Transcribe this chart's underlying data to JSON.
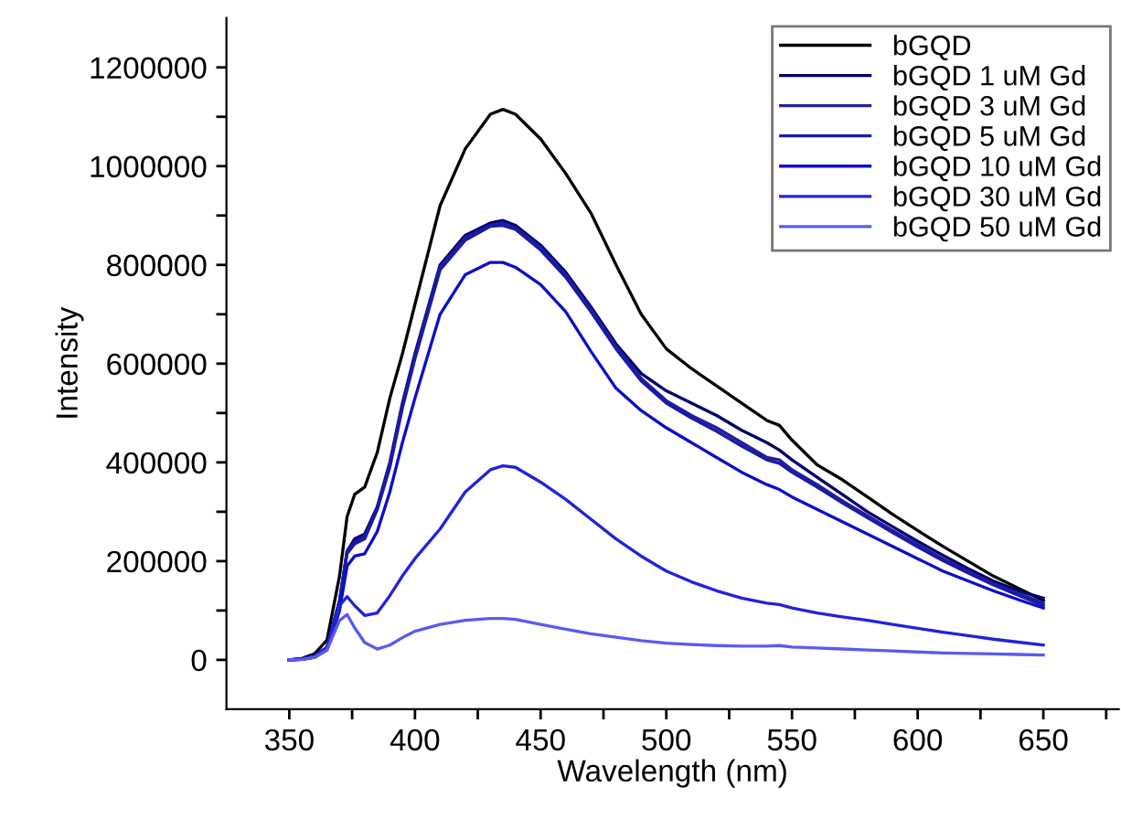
{
  "chart_data": {
    "type": "line",
    "xlabel": "Wavelength (nm)",
    "ylabel": "Intensity",
    "x": [
      350,
      355,
      360,
      365,
      370,
      373,
      376,
      380,
      385,
      390,
      395,
      400,
      410,
      420,
      430,
      435,
      440,
      450,
      460,
      470,
      480,
      490,
      500,
      510,
      520,
      530,
      540,
      545,
      550,
      560,
      570,
      580,
      590,
      600,
      610,
      620,
      630,
      640,
      650
    ],
    "series": [
      {
        "name": "bGQD",
        "color": "#000000",
        "values": [
          0,
          3000,
          12000,
          40000,
          170000,
          290000,
          335000,
          350000,
          420000,
          530000,
          620000,
          720000,
          920000,
          1035000,
          1105000,
          1115000,
          1105000,
          1055000,
          985000,
          905000,
          800000,
          700000,
          630000,
          590000,
          555000,
          520000,
          485000,
          475000,
          445000,
          395000,
          365000,
          330000,
          295000,
          262000,
          230000,
          200000,
          170000,
          145000,
          120000
        ]
      },
      {
        "name": "bGQD 1 uM Gd",
        "color": "#00006e",
        "values": [
          0,
          2000,
          8000,
          25000,
          120000,
          220000,
          245000,
          255000,
          310000,
          400000,
          520000,
          620000,
          800000,
          860000,
          885000,
          890000,
          880000,
          840000,
          785000,
          715000,
          640000,
          580000,
          545000,
          520000,
          495000,
          465000,
          440000,
          425000,
          405000,
          370000,
          335000,
          300000,
          270000,
          240000,
          212000,
          185000,
          160000,
          140000,
          125000
        ]
      },
      {
        "name": "bGQD 3 uM Gd",
        "color": "#1f1f9a",
        "values": [
          0,
          2000,
          8000,
          25000,
          120000,
          215000,
          235000,
          245000,
          305000,
          395000,
          515000,
          615000,
          795000,
          855000,
          880000,
          885000,
          875000,
          835000,
          780000,
          710000,
          635000,
          570000,
          525000,
          495000,
          470000,
          440000,
          410000,
          405000,
          385000,
          355000,
          322000,
          292000,
          262000,
          233000,
          205000,
          180000,
          155000,
          135000,
          115000
        ]
      },
      {
        "name": "bGQD 5 uM Gd",
        "color": "#1a1aa8",
        "values": [
          0,
          2000,
          8000,
          25000,
          115000,
          220000,
          240000,
          250000,
          305000,
          390000,
          510000,
          610000,
          790000,
          850000,
          878000,
          880000,
          872000,
          830000,
          775000,
          705000,
          630000,
          565000,
          520000,
          490000,
          463000,
          433000,
          405000,
          398000,
          380000,
          350000,
          318000,
          288000,
          258000,
          229000,
          201000,
          176000,
          152000,
          131000,
          110000
        ]
      },
      {
        "name": "bGQD 10 uM Gd",
        "color": "#0d0dcc",
        "values": [
          0,
          1000,
          5000,
          20000,
          100000,
          190000,
          210000,
          215000,
          260000,
          340000,
          440000,
          530000,
          700000,
          780000,
          805000,
          805000,
          795000,
          760000,
          705000,
          625000,
          550000,
          505000,
          470000,
          440000,
          410000,
          380000,
          355000,
          345000,
          330000,
          305000,
          280000,
          255000,
          230000,
          205000,
          180000,
          160000,
          140000,
          122000,
          105000
        ]
      },
      {
        "name": "bGQD 30 uM Gd",
        "color": "#2222dd",
        "values": [
          0,
          1000,
          5000,
          25000,
          110000,
          128000,
          110000,
          90000,
          95000,
          130000,
          170000,
          205000,
          265000,
          340000,
          385000,
          393000,
          390000,
          360000,
          325000,
          285000,
          245000,
          210000,
          180000,
          158000,
          140000,
          125000,
          115000,
          112000,
          105000,
          95000,
          87000,
          80000,
          72000,
          64000,
          56000,
          49000,
          42000,
          36000,
          30000
        ]
      },
      {
        "name": "bGQD 50 uM Gd",
        "color": "#5a5af0",
        "values": [
          0,
          1000,
          5000,
          20000,
          80000,
          92000,
          65000,
          35000,
          22000,
          30000,
          45000,
          58000,
          72000,
          80000,
          84000,
          84000,
          82000,
          72000,
          62000,
          53000,
          46000,
          39000,
          34000,
          31000,
          29000,
          28000,
          28000,
          29000,
          26000,
          24000,
          22000,
          20000,
          18000,
          16000,
          14000,
          13000,
          12000,
          11000,
          10000
        ]
      }
    ],
    "xlim": [
      325,
      680
    ],
    "xticks": [
      350,
      {
        "value": 375,
        "label": null
      },
      400,
      {
        "value": 425,
        "label": null
      },
      450,
      {
        "value": 475,
        "label": null
      },
      500,
      {
        "value": 525,
        "label": null
      },
      550,
      {
        "value": 575,
        "label": null
      },
      600,
      {
        "value": 625,
        "label": null
      },
      650,
      {
        "value": 675,
        "label": null
      }
    ],
    "ylim": [
      -100000,
      1300000
    ],
    "yticks": [
      0,
      {
        "value": 100000,
        "label": null
      },
      200000,
      {
        "value": 300000,
        "label": null
      },
      400000,
      {
        "value": 500000,
        "label": null
      },
      600000,
      {
        "value": 700000,
        "label": null
      },
      800000,
      {
        "value": 900000,
        "label": null
      },
      1000000,
      {
        "value": 1100000,
        "label": null
      },
      1200000
    ],
    "grid": false,
    "legend": "top right"
  }
}
